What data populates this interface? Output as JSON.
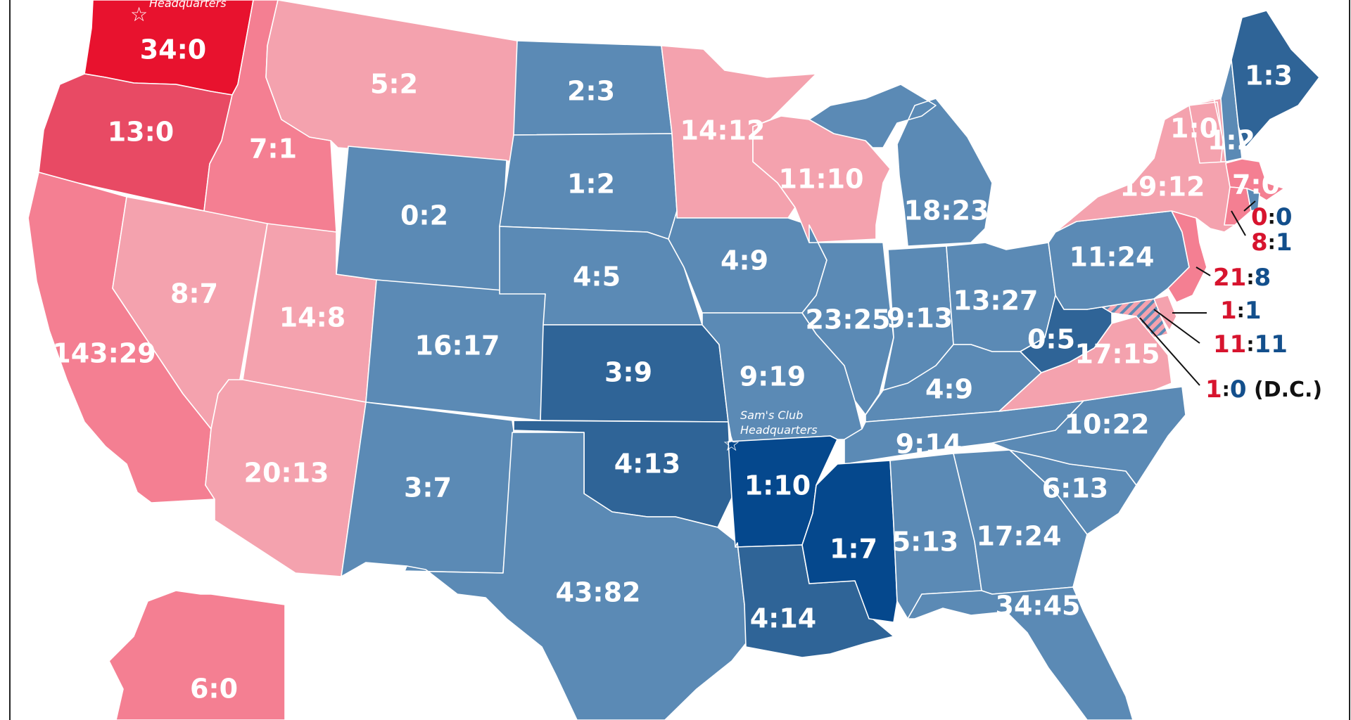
{
  "colors": {
    "red_deep": "#e8122e",
    "red_mid": "#e84a64",
    "red_light": "#f47f92",
    "red_pale": "#f4a2ae",
    "blue_mid": "#5b8ab5",
    "blue_dark": "#2f6497",
    "blue_deep": "#05488d",
    "outside_red": "#d7142e",
    "outside_blue": "#134f8c"
  },
  "annotations": {
    "costco_hq": "Headquarters",
    "sams_club_line1": "Sam's Club",
    "sams_club_line2": "Headquarters"
  },
  "states": [
    {
      "id": "WA",
      "label": "34:0",
      "color": "red_deep"
    },
    {
      "id": "OR",
      "label": "13:0",
      "color": "red_mid"
    },
    {
      "id": "CA",
      "label": "143:29",
      "color": "red_light"
    },
    {
      "id": "ID",
      "label": "7:1",
      "color": "red_light"
    },
    {
      "id": "NV",
      "label": "8:7",
      "color": "red_pale"
    },
    {
      "id": "UT",
      "label": "14:8",
      "color": "red_pale"
    },
    {
      "id": "AZ",
      "label": "20:13",
      "color": "red_pale"
    },
    {
      "id": "MT",
      "label": "5:2",
      "color": "red_pale"
    },
    {
      "id": "WY",
      "label": "0:2",
      "color": "blue_mid"
    },
    {
      "id": "CO",
      "label": "16:17",
      "color": "blue_mid"
    },
    {
      "id": "NM",
      "label": "3:7",
      "color": "blue_mid"
    },
    {
      "id": "ND",
      "label": "2:3",
      "color": "blue_mid"
    },
    {
      "id": "SD",
      "label": "1:2",
      "color": "blue_mid"
    },
    {
      "id": "NE",
      "label": "4:5",
      "color": "blue_mid"
    },
    {
      "id": "KS",
      "label": "3:9",
      "color": "blue_dark"
    },
    {
      "id": "OK",
      "label": "4:13",
      "color": "blue_dark"
    },
    {
      "id": "TX",
      "label": "43:82",
      "color": "blue_mid"
    },
    {
      "id": "MN",
      "label": "14:12",
      "color": "red_pale"
    },
    {
      "id": "IA",
      "label": "4:9",
      "color": "blue_mid"
    },
    {
      "id": "MO",
      "label": "9:19",
      "color": "blue_mid"
    },
    {
      "id": "AR",
      "label": "1:10",
      "color": "blue_deep"
    },
    {
      "id": "LA",
      "label": "4:14",
      "color": "blue_dark"
    },
    {
      "id": "WI",
      "label": "11:10",
      "color": "red_pale"
    },
    {
      "id": "IL",
      "label": "23:25",
      "color": "blue_mid"
    },
    {
      "id": "MI",
      "label": "18:23",
      "color": "blue_mid"
    },
    {
      "id": "IN",
      "label": "9:13",
      "color": "blue_mid"
    },
    {
      "id": "OH",
      "label": "13:27",
      "color": "blue_mid"
    },
    {
      "id": "KY",
      "label": "4:9",
      "color": "blue_mid"
    },
    {
      "id": "TN",
      "label": "9:14",
      "color": "blue_mid"
    },
    {
      "id": "MS",
      "label": "1:7",
      "color": "blue_deep"
    },
    {
      "id": "AL",
      "label": "5:13",
      "color": "blue_mid"
    },
    {
      "id": "GA",
      "label": "17:24",
      "color": "blue_mid"
    },
    {
      "id": "FL",
      "label": "34:45",
      "color": "blue_mid"
    },
    {
      "id": "SC",
      "label": "6:13",
      "color": "blue_mid"
    },
    {
      "id": "NC",
      "label": "10:22",
      "color": "blue_mid"
    },
    {
      "id": "VA",
      "label": "17:15",
      "color": "red_pale"
    },
    {
      "id": "WV",
      "label": "0:5",
      "color": "blue_dark"
    },
    {
      "id": "PA",
      "label": "11:24",
      "color": "blue_mid"
    },
    {
      "id": "NY",
      "label": "19:12",
      "color": "red_pale"
    },
    {
      "id": "VT",
      "label": "1:0",
      "color": "red_pale"
    },
    {
      "id": "NH",
      "label": "1:2",
      "color": "blue_mid"
    },
    {
      "id": "ME",
      "label": "1:3",
      "color": "blue_dark"
    },
    {
      "id": "MA",
      "label": "7:0",
      "color": "red_light"
    },
    {
      "id": "CT",
      "label": "",
      "color": "red_light"
    },
    {
      "id": "RI",
      "label": "",
      "color": "blue_mid"
    },
    {
      "id": "NJ",
      "label": "",
      "color": "red_light"
    },
    {
      "id": "DE",
      "label": "",
      "color": "red_pale"
    },
    {
      "id": "MD",
      "label": "",
      "color": "red_pale"
    },
    {
      "id": "AK",
      "label": "6:0",
      "color": "red_light"
    }
  ],
  "callouts": [
    {
      "id": "RI",
      "left": "0",
      "sep": ":",
      "right": "0",
      "note": ""
    },
    {
      "id": "CT",
      "left": "8",
      "sep": ":",
      "right": "1",
      "note": ""
    },
    {
      "id": "NJ",
      "left": "21",
      "sep": ":",
      "right": "8",
      "note": ""
    },
    {
      "id": "DE",
      "left": "1",
      "sep": ":",
      "right": "1",
      "note": ""
    },
    {
      "id": "MD",
      "left": "11",
      "sep": ":",
      "right": "11",
      "note": ""
    },
    {
      "id": "DC",
      "left": "1",
      "sep": ":",
      "right": "0",
      "note": "(D.C.)"
    }
  ]
}
